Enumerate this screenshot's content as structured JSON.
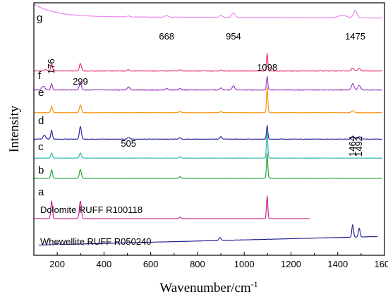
{
  "chart_data": {
    "type": "line",
    "xlabel": "Wavenumber/cm",
    "xlabel_sup": "-1",
    "ylabel": "Intensity",
    "xlim": [
      100,
      1600
    ],
    "xticks": [
      200,
      400,
      600,
      800,
      1000,
      1200,
      1400,
      1600
    ],
    "grid": false,
    "series": [
      {
        "name": "g",
        "color": "#ee82ee",
        "baseline": 0.945,
        "trend": -0.05,
        "noise": 0.002,
        "peaks": [
          [
            505,
            0.004,
            8
          ],
          [
            668,
            0.006,
            10
          ],
          [
            900,
            0.008,
            8
          ],
          [
            954,
            0.018,
            10
          ],
          [
            1420,
            0.01,
            25
          ],
          [
            1475,
            0.03,
            10
          ]
        ],
        "xrange": [
          100,
          1590
        ]
      },
      {
        "name": "f",
        "color": "#ee2a7b",
        "baseline": 0.73,
        "trend": 0,
        "noise": 0.002,
        "peaks": [
          [
            150,
            0.006,
            8
          ],
          [
            176,
            0.03,
            5
          ],
          [
            299,
            0.03,
            6
          ],
          [
            505,
            0.006,
            6
          ],
          [
            725,
            0.005,
            6
          ],
          [
            900,
            0.004,
            6
          ],
          [
            1098,
            0.07,
            4
          ],
          [
            1464,
            0.012,
            8
          ],
          [
            1492,
            0.01,
            8
          ]
        ],
        "xrange": [
          100,
          1590
        ]
      },
      {
        "name": "e",
        "color": "#9932cc",
        "baseline": 0.655,
        "trend": 0,
        "noise": 0.003,
        "peaks": [
          [
            140,
            0.015,
            10
          ],
          [
            176,
            0.025,
            5
          ],
          [
            299,
            0.03,
            6
          ],
          [
            505,
            0.012,
            8
          ],
          [
            668,
            0.006,
            8
          ],
          [
            725,
            0.006,
            6
          ],
          [
            900,
            0.008,
            6
          ],
          [
            954,
            0.015,
            8
          ],
          [
            1098,
            0.055,
            4
          ],
          [
            1464,
            0.025,
            8
          ],
          [
            1492,
            0.018,
            8
          ]
        ],
        "xrange": [
          100,
          1590
        ]
      },
      {
        "name": "d",
        "color": "#ff8c00",
        "baseline": 0.565,
        "trend": 0,
        "noise": 0.001,
        "peaks": [
          [
            176,
            0.025,
            5
          ],
          [
            299,
            0.03,
            6
          ],
          [
            725,
            0.006,
            6
          ],
          [
            900,
            0.004,
            6
          ],
          [
            1098,
            0.1,
            4
          ],
          [
            1464,
            0.008,
            8
          ]
        ],
        "xrange": [
          100,
          1590
        ]
      },
      {
        "name": "c",
        "color": "#1f1fa0",
        "baseline": 0.46,
        "trend": 0,
        "noise": 0.002,
        "peaks": [
          [
            145,
            0.015,
            8
          ],
          [
            176,
            0.035,
            5
          ],
          [
            299,
            0.05,
            6
          ],
          [
            505,
            0.006,
            8
          ],
          [
            725,
            0.006,
            6
          ],
          [
            900,
            0.01,
            6
          ],
          [
            1098,
            0.055,
            4
          ],
          [
            1464,
            0.012,
            8
          ],
          [
            1492,
            0.01,
            8
          ]
        ],
        "xrange": [
          100,
          1590
        ]
      },
      {
        "name": "b",
        "color": "#20b2aa",
        "baseline": 0.385,
        "trend": 0,
        "noise": 0.001,
        "peaks": [
          [
            176,
            0.02,
            5
          ],
          [
            299,
            0.02,
            6
          ],
          [
            725,
            0.004,
            6
          ],
          [
            1098,
            0.1,
            4
          ]
        ],
        "xrange": [
          100,
          1590
        ]
      },
      {
        "name": "a",
        "color": "#1aa12a",
        "baseline": 0.305,
        "trend": 0,
        "noise": 0.001,
        "peaks": [
          [
            176,
            0.035,
            5
          ],
          [
            299,
            0.035,
            6
          ],
          [
            725,
            0.006,
            6
          ],
          [
            1098,
            0.1,
            4
          ]
        ],
        "xrange": [
          100,
          1590
        ]
      },
      {
        "name": "Dolomite RUFF R100118",
        "color": "#c71585",
        "baseline": 0.145,
        "trend": 0,
        "noise": 0,
        "peaks": [
          [
            176,
            0.07,
            5
          ],
          [
            299,
            0.07,
            6
          ],
          [
            725,
            0.006,
            6
          ],
          [
            1098,
            0.09,
            4
          ]
        ],
        "xrange": [
          100,
          1280
        ]
      },
      {
        "name": "Whewellite RUFF R050240",
        "color": "#1a1a8c",
        "baseline": 0.04,
        "trend": 0.035,
        "noise": 0.001,
        "peaks": [
          [
            200,
            0.005,
            8
          ],
          [
            505,
            0.003,
            8
          ],
          [
            896,
            0.012,
            6
          ],
          [
            1464,
            0.05,
            5
          ],
          [
            1492,
            0.035,
            5
          ]
        ],
        "xrange": [
          120,
          1570
        ]
      }
    ],
    "annotations": [
      {
        "text": "668",
        "x": 668,
        "series": "g"
      },
      {
        "text": "954",
        "x": 954,
        "series": "g"
      },
      {
        "text": "1475",
        "x": 1475,
        "series": "g"
      },
      {
        "text": "176",
        "x": 176,
        "series": "f"
      },
      {
        "text": "299",
        "x": 299,
        "series": "f"
      },
      {
        "text": "1098",
        "x": 1098,
        "series": "f"
      },
      {
        "text": "505",
        "x": 505,
        "series": "c"
      },
      {
        "text": "1464",
        "x": 1464,
        "series": "c"
      },
      {
        "text": "1492",
        "x": 1492,
        "series": "c"
      }
    ]
  }
}
